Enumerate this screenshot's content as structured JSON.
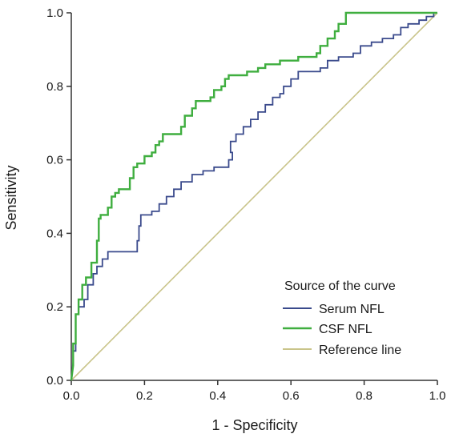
{
  "chart_data": {
    "type": "line",
    "title": "",
    "xlabel": "1 - Specificity",
    "ylabel": "Sensitivity",
    "xlim": [
      0,
      1
    ],
    "ylim": [
      0,
      1
    ],
    "x_ticks": [
      "0.0",
      "0.2",
      "0.4",
      "0.6",
      "0.8",
      "1.0"
    ],
    "y_ticks": [
      "0.0",
      "0.2",
      "0.4",
      "0.6",
      "0.8",
      "1.0"
    ],
    "grid": false,
    "legend": {
      "title": "Source of the curve",
      "placement": "bottom-right"
    },
    "series": [
      {
        "name": "Serum NFL",
        "color": "#3a4a8c",
        "step": true,
        "points": [
          [
            0,
            0
          ],
          [
            0.005,
            0.05
          ],
          [
            0.005,
            0.08
          ],
          [
            0.012,
            0.08
          ],
          [
            0.012,
            0.18
          ],
          [
            0.02,
            0.18
          ],
          [
            0.02,
            0.2
          ],
          [
            0.035,
            0.2
          ],
          [
            0.035,
            0.22
          ],
          [
            0.045,
            0.22
          ],
          [
            0.045,
            0.26
          ],
          [
            0.06,
            0.26
          ],
          [
            0.06,
            0.29
          ],
          [
            0.07,
            0.29
          ],
          [
            0.07,
            0.31
          ],
          [
            0.085,
            0.31
          ],
          [
            0.085,
            0.33
          ],
          [
            0.1,
            0.33
          ],
          [
            0.1,
            0.35
          ],
          [
            0.18,
            0.35
          ],
          [
            0.18,
            0.38
          ],
          [
            0.185,
            0.38
          ],
          [
            0.185,
            0.42
          ],
          [
            0.19,
            0.42
          ],
          [
            0.19,
            0.45
          ],
          [
            0.22,
            0.45
          ],
          [
            0.22,
            0.46
          ],
          [
            0.24,
            0.46
          ],
          [
            0.24,
            0.48
          ],
          [
            0.26,
            0.48
          ],
          [
            0.26,
            0.5
          ],
          [
            0.28,
            0.5
          ],
          [
            0.28,
            0.52
          ],
          [
            0.3,
            0.52
          ],
          [
            0.3,
            0.54
          ],
          [
            0.33,
            0.54
          ],
          [
            0.33,
            0.56
          ],
          [
            0.36,
            0.56
          ],
          [
            0.36,
            0.57
          ],
          [
            0.39,
            0.57
          ],
          [
            0.39,
            0.58
          ],
          [
            0.43,
            0.58
          ],
          [
            0.43,
            0.6
          ],
          [
            0.44,
            0.6
          ],
          [
            0.44,
            0.62
          ],
          [
            0.435,
            0.62
          ],
          [
            0.435,
            0.65
          ],
          [
            0.45,
            0.65
          ],
          [
            0.45,
            0.67
          ],
          [
            0.47,
            0.67
          ],
          [
            0.47,
            0.69
          ],
          [
            0.49,
            0.69
          ],
          [
            0.49,
            0.71
          ],
          [
            0.51,
            0.71
          ],
          [
            0.51,
            0.73
          ],
          [
            0.53,
            0.73
          ],
          [
            0.53,
            0.75
          ],
          [
            0.55,
            0.75
          ],
          [
            0.55,
            0.77
          ],
          [
            0.57,
            0.77
          ],
          [
            0.57,
            0.78
          ],
          [
            0.58,
            0.78
          ],
          [
            0.58,
            0.8
          ],
          [
            0.6,
            0.8
          ],
          [
            0.6,
            0.82
          ],
          [
            0.62,
            0.82
          ],
          [
            0.62,
            0.84
          ],
          [
            0.68,
            0.84
          ],
          [
            0.68,
            0.85
          ],
          [
            0.7,
            0.85
          ],
          [
            0.7,
            0.87
          ],
          [
            0.73,
            0.87
          ],
          [
            0.73,
            0.88
          ],
          [
            0.77,
            0.88
          ],
          [
            0.77,
            0.89
          ],
          [
            0.79,
            0.89
          ],
          [
            0.79,
            0.91
          ],
          [
            0.82,
            0.91
          ],
          [
            0.82,
            0.92
          ],
          [
            0.85,
            0.92
          ],
          [
            0.85,
            0.93
          ],
          [
            0.88,
            0.93
          ],
          [
            0.88,
            0.94
          ],
          [
            0.9,
            0.94
          ],
          [
            0.9,
            0.96
          ],
          [
            0.92,
            0.96
          ],
          [
            0.92,
            0.97
          ],
          [
            0.95,
            0.97
          ],
          [
            0.95,
            0.98
          ],
          [
            0.97,
            0.98
          ],
          [
            0.97,
            0.99
          ],
          [
            0.99,
            0.99
          ],
          [
            0.99,
            1.0
          ],
          [
            1.0,
            1.0
          ]
        ]
      },
      {
        "name": "CSF NFL",
        "color": "#3fae3f",
        "step": true,
        "points": [
          [
            0,
            0
          ],
          [
            0.005,
            0.04
          ],
          [
            0.005,
            0.1
          ],
          [
            0.012,
            0.1
          ],
          [
            0.012,
            0.18
          ],
          [
            0.02,
            0.18
          ],
          [
            0.02,
            0.22
          ],
          [
            0.03,
            0.22
          ],
          [
            0.03,
            0.26
          ],
          [
            0.04,
            0.26
          ],
          [
            0.04,
            0.28
          ],
          [
            0.055,
            0.28
          ],
          [
            0.055,
            0.32
          ],
          [
            0.07,
            0.32
          ],
          [
            0.07,
            0.38
          ],
          [
            0.075,
            0.38
          ],
          [
            0.075,
            0.44
          ],
          [
            0.08,
            0.44
          ],
          [
            0.08,
            0.45
          ],
          [
            0.1,
            0.45
          ],
          [
            0.1,
            0.47
          ],
          [
            0.11,
            0.47
          ],
          [
            0.11,
            0.5
          ],
          [
            0.12,
            0.5
          ],
          [
            0.12,
            0.51
          ],
          [
            0.13,
            0.51
          ],
          [
            0.13,
            0.52
          ],
          [
            0.16,
            0.52
          ],
          [
            0.16,
            0.55
          ],
          [
            0.17,
            0.55
          ],
          [
            0.17,
            0.58
          ],
          [
            0.18,
            0.58
          ],
          [
            0.18,
            0.59
          ],
          [
            0.2,
            0.59
          ],
          [
            0.2,
            0.61
          ],
          [
            0.22,
            0.61
          ],
          [
            0.22,
            0.62
          ],
          [
            0.23,
            0.62
          ],
          [
            0.23,
            0.64
          ],
          [
            0.24,
            0.64
          ],
          [
            0.24,
            0.65
          ],
          [
            0.25,
            0.65
          ],
          [
            0.25,
            0.67
          ],
          [
            0.3,
            0.67
          ],
          [
            0.3,
            0.69
          ],
          [
            0.31,
            0.69
          ],
          [
            0.31,
            0.72
          ],
          [
            0.33,
            0.72
          ],
          [
            0.33,
            0.74
          ],
          [
            0.34,
            0.74
          ],
          [
            0.34,
            0.76
          ],
          [
            0.38,
            0.76
          ],
          [
            0.38,
            0.77
          ],
          [
            0.39,
            0.77
          ],
          [
            0.39,
            0.79
          ],
          [
            0.41,
            0.79
          ],
          [
            0.41,
            0.8
          ],
          [
            0.42,
            0.8
          ],
          [
            0.42,
            0.82
          ],
          [
            0.43,
            0.82
          ],
          [
            0.43,
            0.83
          ],
          [
            0.48,
            0.83
          ],
          [
            0.48,
            0.84
          ],
          [
            0.51,
            0.84
          ],
          [
            0.51,
            0.85
          ],
          [
            0.53,
            0.85
          ],
          [
            0.53,
            0.86
          ],
          [
            0.57,
            0.86
          ],
          [
            0.57,
            0.87
          ],
          [
            0.62,
            0.87
          ],
          [
            0.62,
            0.88
          ],
          [
            0.67,
            0.88
          ],
          [
            0.67,
            0.89
          ],
          [
            0.68,
            0.89
          ],
          [
            0.68,
            0.91
          ],
          [
            0.7,
            0.91
          ],
          [
            0.7,
            0.93
          ],
          [
            0.72,
            0.93
          ],
          [
            0.72,
            0.95
          ],
          [
            0.73,
            0.95
          ],
          [
            0.73,
            0.97
          ],
          [
            0.75,
            0.97
          ],
          [
            0.75,
            1.0
          ],
          [
            1.0,
            1.0
          ]
        ]
      },
      {
        "name": "Reference line",
        "color": "#c9c48a",
        "step": false,
        "points": [
          [
            0,
            0
          ],
          [
            1,
            1
          ]
        ]
      }
    ]
  }
}
